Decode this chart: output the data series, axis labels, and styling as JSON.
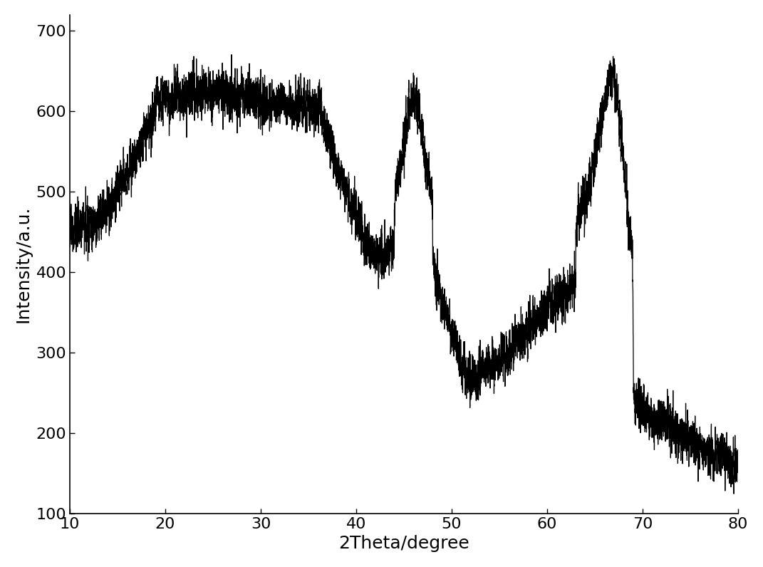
{
  "xlabel": "2Theta/degree",
  "ylabel": "Intensity/a.u.",
  "xlim": [
    10,
    80
  ],
  "ylim": [
    100,
    720
  ],
  "xticks": [
    10,
    20,
    30,
    40,
    50,
    60,
    70,
    80
  ],
  "yticks": [
    100,
    200,
    300,
    400,
    500,
    600,
    700
  ],
  "line_color": "#000000",
  "background_color": "#ffffff",
  "linewidth": 0.9,
  "xlabel_fontsize": 18,
  "ylabel_fontsize": 18,
  "tick_fontsize": 16,
  "seed": 12345
}
